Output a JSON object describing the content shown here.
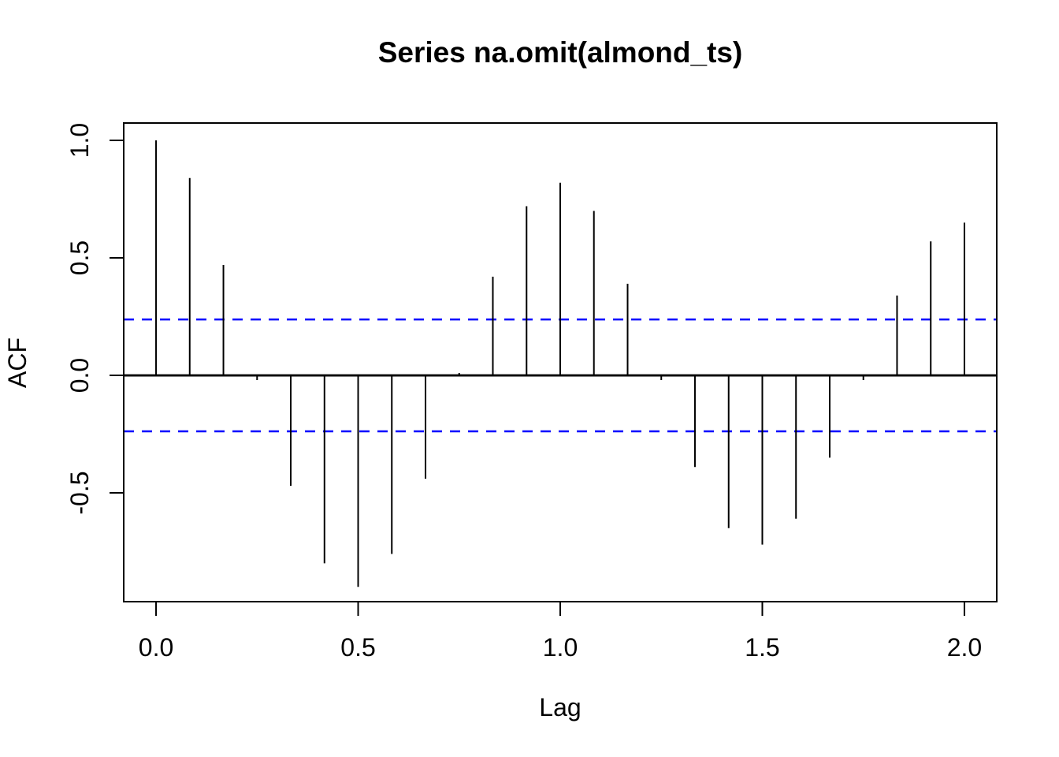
{
  "window": {
    "background": "#ffffff"
  },
  "chart_data": {
    "type": "bar",
    "subtype": "acf-stick-plot",
    "title": "Series  na.omit(almond_ts)",
    "xlabel": "Lag",
    "ylabel": "ACF",
    "x": [
      0,
      0.0833,
      0.1667,
      0.25,
      0.3333,
      0.4167,
      0.5,
      0.5833,
      0.6667,
      0.75,
      0.8333,
      0.9167,
      1.0,
      1.0833,
      1.1667,
      1.25,
      1.3333,
      1.4167,
      1.5,
      1.5833,
      1.6667,
      1.75,
      1.8333,
      1.9167,
      2.0
    ],
    "values": [
      1.0,
      0.84,
      0.47,
      -0.02,
      -0.47,
      -0.8,
      -0.9,
      -0.76,
      -0.44,
      0.01,
      0.42,
      0.72,
      0.82,
      0.7,
      0.39,
      -0.02,
      -0.39,
      -0.65,
      -0.72,
      -0.61,
      -0.35,
      -0.02,
      0.34,
      0.57,
      0.65
    ],
    "confidence_bounds": [
      -0.238,
      0.238
    ],
    "xlim": [
      -0.08,
      2.08
    ],
    "ylim": [
      -0.963,
      1.074
    ],
    "xticks": [
      0.0,
      0.5,
      1.0,
      1.5,
      2.0
    ],
    "xtick_labels": [
      "0.0",
      "0.5",
      "1.0",
      "1.5",
      "2.0"
    ],
    "yticks": [
      -0.5,
      0.0,
      0.5,
      1.0
    ],
    "ytick_labels": [
      "-0.5",
      "0.0",
      "0.5",
      "1.0"
    ],
    "grid": false,
    "legend": null,
    "zero_line": 0.0
  },
  "colors": {
    "spike": "#000000",
    "axis": "#000000",
    "confidence_line": "#0000ff",
    "background": "#ffffff"
  }
}
